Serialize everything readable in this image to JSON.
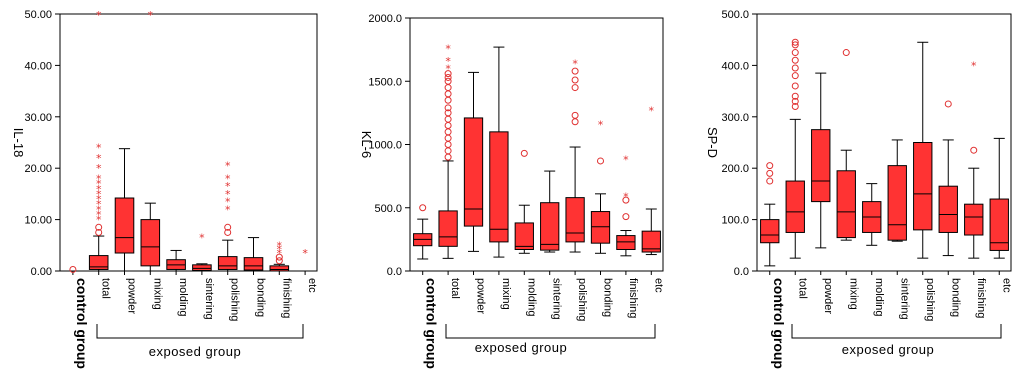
{
  "chart_data": [
    {
      "type": "box",
      "ylabel": "IL-18",
      "ylim": [
        0,
        50
      ],
      "yticks": [
        "0.00",
        "10.00",
        "20.00",
        "30.00",
        "40.00",
        "50.00"
      ],
      "categories": [
        "control group",
        "total",
        "powder",
        "mixing",
        "molding",
        "sintering",
        "polishing",
        "bonding",
        "finishing",
        "etc"
      ],
      "boxes": [
        {
          "q1": null,
          "med": null,
          "q3": null,
          "lo": null,
          "hi": null,
          "circles": [
            0.3
          ],
          "stars": []
        },
        {
          "q1": 0.3,
          "med": 0.8,
          "q3": 3.0,
          "lo": 0.0,
          "hi": 6.8,
          "circles": [
            7.5,
            8.5
          ],
          "stars": [
            10,
            11,
            12,
            13,
            14,
            15,
            16,
            17,
            18,
            20,
            22,
            24,
            49.8
          ]
        },
        {
          "q1": 3.5,
          "med": 6.5,
          "q3": 14.2,
          "lo": 0.0,
          "hi": 23.8,
          "circles": [],
          "stars": []
        },
        {
          "q1": 1.0,
          "med": 4.7,
          "q3": 10.0,
          "lo": 0.0,
          "hi": 13.2,
          "circles": [],
          "stars": [
            49.8
          ]
        },
        {
          "q1": 0.3,
          "med": 1.2,
          "q3": 2.2,
          "lo": 0.0,
          "hi": 4.0,
          "circles": [],
          "stars": []
        },
        {
          "q1": 0.1,
          "med": 0.5,
          "q3": 1.2,
          "lo": 0.0,
          "hi": 1.4,
          "circles": [],
          "stars": [
            6.5
          ]
        },
        {
          "q1": 0.3,
          "med": 1.0,
          "q3": 2.8,
          "lo": 0.0,
          "hi": 6.0,
          "circles": [
            7.5,
            8.5
          ],
          "stars": [
            12,
            13.5,
            15,
            16.5,
            18,
            20.5
          ]
        },
        {
          "q1": 0.2,
          "med": 1.0,
          "q3": 2.6,
          "lo": 0.0,
          "hi": 6.5,
          "circles": [],
          "stars": []
        },
        {
          "q1": 0.0,
          "med": 0.3,
          "q3": 1.0,
          "lo": 0.0,
          "hi": 1.3,
          "circles": [
            2.0,
            2.7
          ],
          "stars": [
            3.5,
            4.3,
            5.0
          ]
        },
        {
          "q1": null,
          "med": null,
          "q3": null,
          "lo": null,
          "hi": null,
          "circles": [],
          "stars": [
            3.5
          ]
        }
      ]
    },
    {
      "type": "box",
      "ylabel": "KL-6",
      "ylim": [
        0,
        2000
      ],
      "yticks": [
        "0.0",
        "500.0",
        "1000.0",
        "1500.0",
        "2000.0"
      ],
      "categories": [
        "control group",
        "total",
        "powder",
        "mixing",
        "molding",
        "sintering",
        "polishing",
        "bonding",
        "finishing",
        "etc"
      ],
      "boxes": [
        {
          "q1": 200,
          "med": 250,
          "q3": 295,
          "lo": 95,
          "hi": 410,
          "circles": [
            500
          ],
          "stars": []
        },
        {
          "q1": 195,
          "med": 270,
          "q3": 475,
          "lo": 100,
          "hi": 870,
          "circles": [
            900,
            950,
            1000,
            1050,
            1100,
            1150,
            1200,
            1250,
            1290,
            1350,
            1400,
            1450,
            1500,
            1530,
            1560
          ],
          "stars": [
            1600,
            1660,
            1760
          ]
        },
        {
          "q1": 355,
          "med": 490,
          "q3": 1210,
          "lo": 155,
          "hi": 1570,
          "circles": [],
          "stars": []
        },
        {
          "q1": 230,
          "med": 330,
          "q3": 1100,
          "lo": 110,
          "hi": 1770,
          "circles": [],
          "stars": []
        },
        {
          "q1": 170,
          "med": 195,
          "q3": 380,
          "lo": 140,
          "hi": 520,
          "circles": [
            930
          ],
          "stars": []
        },
        {
          "q1": 165,
          "med": 210,
          "q3": 540,
          "lo": 150,
          "hi": 790,
          "circles": [],
          "stars": []
        },
        {
          "q1": 230,
          "med": 300,
          "q3": 580,
          "lo": 150,
          "hi": 980,
          "circles": [
            1180,
            1230,
            1450,
            1510,
            1580
          ],
          "stars": [
            1640
          ]
        },
        {
          "q1": 220,
          "med": 350,
          "q3": 470,
          "lo": 140,
          "hi": 610,
          "circles": [
            870
          ],
          "stars": [
            1160
          ]
        },
        {
          "q1": 170,
          "med": 230,
          "q3": 280,
          "lo": 120,
          "hi": 320,
          "circles": [
            430,
            560
          ],
          "stars": [
            590,
            880
          ]
        },
        {
          "q1": 150,
          "med": 175,
          "q3": 315,
          "lo": 130,
          "hi": 490,
          "circles": [],
          "stars": [
            1270
          ]
        }
      ]
    },
    {
      "type": "box",
      "ylabel": "SP-D",
      "ylim": [
        0,
        500
      ],
      "yticks": [
        "0.0",
        "100.0",
        "200.0",
        "300.0",
        "400.0",
        "500.0"
      ],
      "categories": [
        "control group",
        "total",
        "powder",
        "mixing",
        "molding",
        "sintering",
        "polishing",
        "bonding",
        "finishing",
        "etc"
      ],
      "boxes": [
        {
          "q1": 55,
          "med": 70,
          "q3": 100,
          "lo": 10,
          "hi": 130,
          "circles": [
            175,
            190,
            205
          ],
          "stars": []
        },
        {
          "q1": 75,
          "med": 115,
          "q3": 175,
          "lo": 25,
          "hi": 295,
          "circles": [
            320,
            330,
            340,
            360,
            380,
            395,
            410,
            425,
            440,
            445
          ],
          "stars": []
        },
        {
          "q1": 135,
          "med": 175,
          "q3": 275,
          "lo": 45,
          "hi": 385,
          "circles": [],
          "stars": []
        },
        {
          "q1": 65,
          "med": 115,
          "q3": 195,
          "lo": 60,
          "hi": 235,
          "circles": [
            425
          ],
          "stars": []
        },
        {
          "q1": 75,
          "med": 105,
          "q3": 135,
          "lo": 50,
          "hi": 170,
          "circles": [],
          "stars": []
        },
        {
          "q1": 60,
          "med": 90,
          "q3": 205,
          "lo": 58,
          "hi": 255,
          "circles": [],
          "stars": []
        },
        {
          "q1": 80,
          "med": 150,
          "q3": 250,
          "lo": 25,
          "hi": 445,
          "circles": [],
          "stars": []
        },
        {
          "q1": 75,
          "med": 110,
          "q3": 165,
          "lo": 30,
          "hi": 255,
          "circles": [
            325
          ],
          "stars": []
        },
        {
          "q1": 70,
          "med": 105,
          "q3": 130,
          "lo": 25,
          "hi": 200,
          "circles": [
            235
          ],
          "stars": [
            400
          ]
        },
        {
          "q1": 40,
          "med": 55,
          "q3": 140,
          "lo": 25,
          "hi": 258,
          "circles": [],
          "stars": []
        }
      ]
    }
  ],
  "group_label": "exposed group"
}
